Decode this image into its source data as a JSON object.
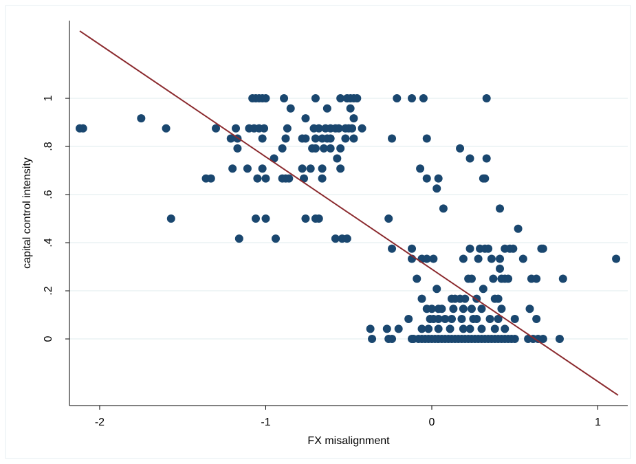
{
  "chart_data": {
    "type": "scatter",
    "xlabel": "FX misalignment",
    "ylabel": "capital control intensity",
    "color": "#1a476f",
    "x": [
      -1.08,
      -1.06,
      -1.04,
      -1.02,
      -1.0,
      -0.89,
      -0.7,
      -0.55,
      -0.51,
      -0.49,
      -0.47,
      -0.45,
      -0.21,
      -0.12,
      -0.05,
      0.33,
      -0.85,
      -0.63,
      -0.49,
      -1.75,
      -0.76,
      -0.47,
      -2.12,
      -2.1,
      -1.6,
      -1.3,
      -1.18,
      -1.1,
      -1.07,
      -1.04,
      -1.01,
      -0.87,
      -0.71,
      -0.68,
      -0.64,
      -0.61,
      -0.58,
      -0.56,
      -0.52,
      -0.5,
      -0.48,
      -0.42,
      -1.21,
      -1.17,
      -1.02,
      -0.88,
      -0.78,
      -0.76,
      -0.7,
      -0.66,
      -0.63,
      -0.61,
      -0.52,
      -0.47,
      -0.24,
      -0.03,
      -1.17,
      -0.9,
      -0.72,
      -0.7,
      -0.65,
      -0.61,
      -0.55,
      0.17,
      -0.95,
      -0.57,
      0.23,
      0.33,
      -1.2,
      -1.11,
      -1.02,
      -0.78,
      -0.73,
      -0.66,
      -0.55,
      -0.07,
      -1.36,
      -1.33,
      -1.05,
      -1.0,
      -0.9,
      -0.88,
      -0.86,
      -0.77,
      -0.66,
      -0.03,
      0.04,
      0.31,
      0.32,
      0.03,
      0.07,
      0.41,
      -1.57,
      -1.06,
      -1.0,
      -0.76,
      -0.7,
      -0.68,
      -0.26,
      0.52,
      -1.16,
      -0.94,
      -0.58,
      -0.54,
      -0.51,
      -0.24,
      -0.12,
      0.23,
      0.29,
      0.32,
      0.34,
      0.44,
      0.47,
      0.49,
      0.66,
      0.67,
      -0.12,
      -0.06,
      -0.03,
      0.01,
      0.19,
      0.28,
      0.36,
      0.41,
      0.55,
      1.11,
      0.41,
      -0.09,
      0.22,
      0.24,
      0.37,
      0.42,
      0.44,
      0.46,
      0.6,
      0.63,
      0.79,
      0.03,
      0.31,
      -0.06,
      0.12,
      0.14,
      0.17,
      0.2,
      0.27,
      0.38,
      0.4,
      -0.03,
      0.0,
      0.04,
      0.06,
      0.13,
      0.19,
      0.24,
      0.3,
      0.42,
      0.59,
      -0.14,
      -0.01,
      0.01,
      0.04,
      0.08,
      0.12,
      0.18,
      0.25,
      0.27,
      0.35,
      0.4,
      0.5,
      0.63,
      -0.37,
      -0.27,
      -0.2,
      -0.06,
      -0.02,
      0.04,
      0.11,
      0.19,
      0.23,
      0.3,
      0.38,
      0.44,
      -0.36,
      -0.26,
      -0.24,
      -0.12,
      -0.11,
      -0.08,
      -0.06,
      -0.04,
      -0.02,
      0.0,
      0.02,
      0.04,
      0.06,
      0.08,
      0.1,
      0.12,
      0.14,
      0.16,
      0.18,
      0.2,
      0.22,
      0.24,
      0.26,
      0.28,
      0.3,
      0.32,
      0.34,
      0.36,
      0.38,
      0.4,
      0.42,
      0.44,
      0.46,
      0.48,
      0.5,
      0.58,
      0.61,
      0.64,
      0.67,
      0.77
    ],
    "values": [
      1,
      1,
      1,
      1,
      1,
      1,
      1,
      1,
      1,
      1,
      1,
      1,
      1,
      1,
      1,
      1,
      0.958,
      0.958,
      0.958,
      0.917,
      0.917,
      0.917,
      0.875,
      0.875,
      0.875,
      0.875,
      0.875,
      0.875,
      0.875,
      0.875,
      0.875,
      0.875,
      0.875,
      0.875,
      0.875,
      0.875,
      0.875,
      0.875,
      0.875,
      0.875,
      0.875,
      0.875,
      0.833,
      0.833,
      0.833,
      0.833,
      0.833,
      0.833,
      0.833,
      0.833,
      0.833,
      0.833,
      0.833,
      0.833,
      0.833,
      0.833,
      0.792,
      0.792,
      0.792,
      0.792,
      0.792,
      0.792,
      0.792,
      0.792,
      0.75,
      0.75,
      0.75,
      0.75,
      0.708,
      0.708,
      0.708,
      0.708,
      0.708,
      0.708,
      0.708,
      0.708,
      0.667,
      0.667,
      0.667,
      0.667,
      0.667,
      0.667,
      0.667,
      0.667,
      0.667,
      0.667,
      0.667,
      0.667,
      0.667,
      0.625,
      0.542,
      0.542,
      0.5,
      0.5,
      0.5,
      0.5,
      0.5,
      0.5,
      0.5,
      0.458,
      0.417,
      0.417,
      0.417,
      0.417,
      0.417,
      0.375,
      0.375,
      0.375,
      0.375,
      0.375,
      0.375,
      0.375,
      0.375,
      0.375,
      0.375,
      0.375,
      0.333,
      0.333,
      0.333,
      0.333,
      0.333,
      0.333,
      0.333,
      0.333,
      0.333,
      0.333,
      0.292,
      0.25,
      0.25,
      0.25,
      0.25,
      0.25,
      0.25,
      0.25,
      0.25,
      0.25,
      0.25,
      0.208,
      0.208,
      0.167,
      0.167,
      0.167,
      0.167,
      0.167,
      0.167,
      0.167,
      0.167,
      0.125,
      0.125,
      0.125,
      0.125,
      0.125,
      0.125,
      0.125,
      0.125,
      0.125,
      0.125,
      0.083,
      0.083,
      0.083,
      0.083,
      0.083,
      0.083,
      0.083,
      0.083,
      0.083,
      0.083,
      0.083,
      0.083,
      0.083,
      0.042,
      0.042,
      0.042,
      0.042,
      0.042,
      0.042,
      0.042,
      0.042,
      0.042,
      0.042,
      0.042,
      0.042,
      0,
      0,
      0,
      0,
      0,
      0,
      0,
      0,
      0,
      0,
      0,
      0,
      0,
      0,
      0,
      0,
      0,
      0,
      0,
      0,
      0,
      0,
      0,
      0,
      0,
      0,
      0,
      0,
      0,
      0,
      0,
      0,
      0,
      0,
      0,
      0,
      0,
      0,
      0,
      0
    ],
    "fit_line": {
      "x": [
        -2.12,
        1.122
      ],
      "values": [
        1.28,
        -0.234
      ],
      "color": "#8b2a2e"
    },
    "xlim": [
      -2.182,
      1.18
    ],
    "ylim": [
      -0.277,
      1.323
    ],
    "xticks": [
      -2,
      -1,
      0,
      1
    ],
    "yticks": [
      0,
      {
        "value": 0.2,
        "label": ".2"
      },
      {
        "value": 0.4,
        "label": ".4"
      },
      {
        "value": 0.6,
        "label": ".6"
      },
      {
        "value": 0.8,
        "label": ".8"
      },
      1
    ],
    "grid": true
  }
}
